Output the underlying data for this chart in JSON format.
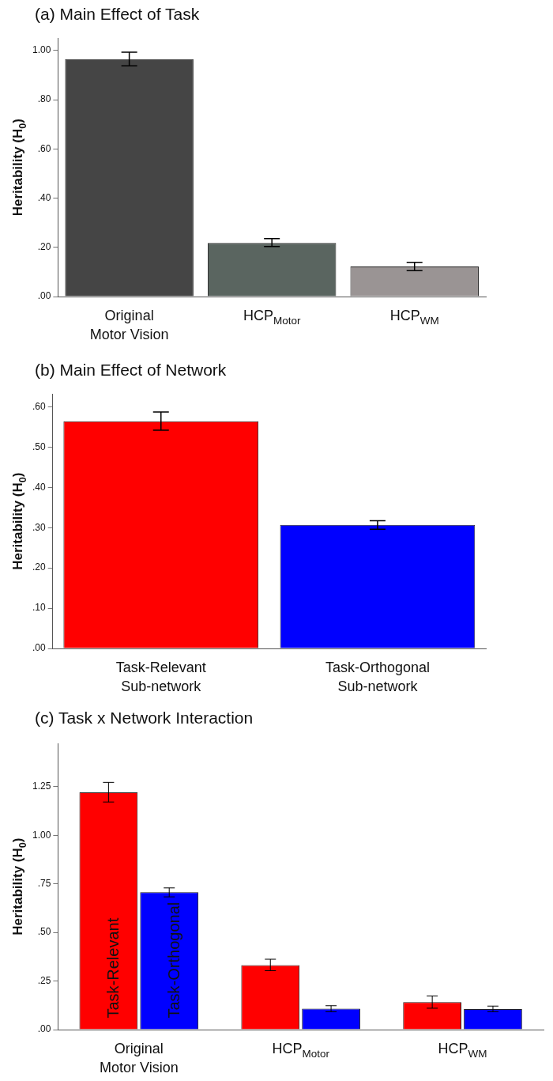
{
  "chart_data": [
    {
      "type": "bar",
      "title": "(a) Main Effect of Task",
      "ylabel": "Heritability (H$_{0}$)",
      "categories": [
        "Original\nMotor Vision",
        "HCP$_{Motor}$",
        "HCP$_{WM}$"
      ],
      "values": [
        0.965,
        0.218,
        0.122
      ],
      "colors": [
        "#454545",
        "#5a6560",
        "#9a9494"
      ],
      "errors": [
        [
          0.937,
          0.993
        ],
        [
          0.203,
          0.235
        ],
        [
          0.105,
          0.139
        ]
      ],
      "ylim": [
        0,
        1.05
      ],
      "yticks": [
        {
          "value": 0,
          "label": ".00"
        },
        {
          "value": 0.2,
          "label": ".20"
        },
        {
          "value": 0.4,
          "label": ".40"
        },
        {
          "value": 0.6,
          "label": ".60"
        },
        {
          "value": 0.8,
          "label": ".80"
        },
        {
          "value": 1,
          "label": "1.00"
        }
      ],
      "grid": false,
      "legend": false
    },
    {
      "type": "bar",
      "title": "(b) Main Effect of Network",
      "ylabel": "Heritability (H$_{0}$)",
      "categories": [
        "Task-Relevant\nSub-network",
        "Task-Orthogonal\nSub-network"
      ],
      "values": [
        0.564,
        0.307
      ],
      "colors": [
        "#ff0000",
        "#0000ff"
      ],
      "errors": [
        [
          0.542,
          0.587
        ],
        [
          0.296,
          0.317
        ]
      ],
      "ylim": [
        0,
        0.632
      ],
      "yticks": [
        {
          "value": 0,
          "label": ".00"
        },
        {
          "value": 0.1,
          "label": ".10"
        },
        {
          "value": 0.2,
          "label": ".20"
        },
        {
          "value": 0.3,
          "label": ".30"
        },
        {
          "value": 0.4,
          "label": ".40"
        },
        {
          "value": 0.5,
          "label": ".50"
        },
        {
          "value": 0.6,
          "label": ".60"
        }
      ],
      "grid": false,
      "legend": false
    },
    {
      "type": "bar",
      "title": "(c) Task x Network Interaction",
      "ylabel": "Heritability (H$_{0}$)",
      "categories": [
        "Original\nMotor Vision",
        "HCP$_{Motor}$",
        "HCP$_{WM}$"
      ],
      "series": [
        {
          "name": "Task-Relevant",
          "color": "#ff0000",
          "values": [
            1.221,
            0.332,
            0.141
          ],
          "errors": [
            [
              1.171,
              1.272
            ],
            [
              0.303,
              0.362
            ],
            [
              0.11,
              0.173
            ]
          ]
        },
        {
          "name": "Task-Orthogonal",
          "color": "#0000ff",
          "values": [
            0.707,
            0.108,
            0.106
          ],
          "errors": [
            [
              0.683,
              0.729
            ],
            [
              0.092,
              0.123
            ],
            [
              0.092,
              0.121
            ]
          ]
        }
      ],
      "ylim": [
        0,
        1.472
      ],
      "yticks": [
        {
          "value": 0,
          "label": ".00"
        },
        {
          "value": 0.25,
          "label": ".25"
        },
        {
          "value": 0.5,
          "label": ".50"
        },
        {
          "value": 0.75,
          "label": ".75"
        },
        {
          "value": 1,
          "label": "1.00"
        },
        {
          "value": 1.25,
          "label": "1.25"
        }
      ],
      "grid": false,
      "legend": false
    }
  ]
}
